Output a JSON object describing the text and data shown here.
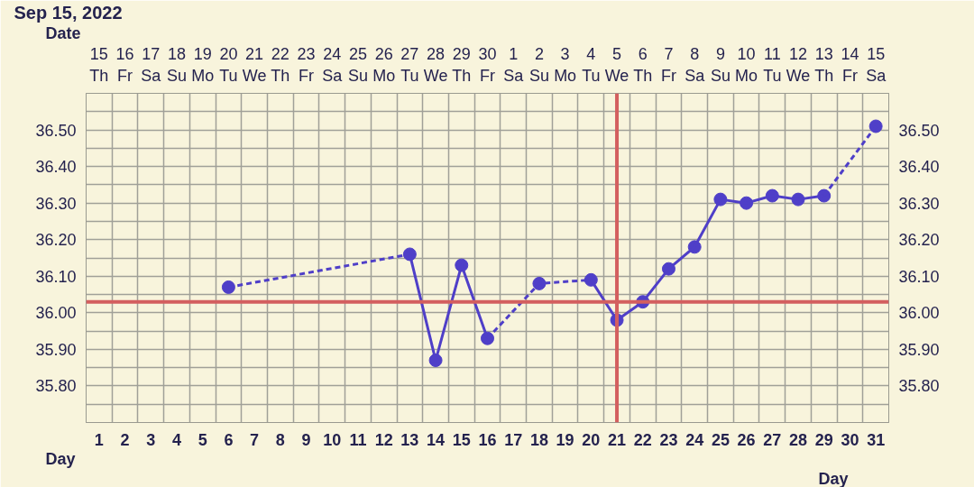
{
  "chart_data": {
    "type": "line",
    "title": "Sep 15, 2022",
    "xlabel": "Date",
    "x2label": "Day",
    "categories": [
      "15\nTh",
      "16\nFr",
      "17\nSa",
      "18\nSu",
      "19\nMo",
      "20\nTu",
      "21\nWe",
      "22\nTh",
      "23\nFr",
      "24\nSa",
      "25\nSu",
      "26\nMo",
      "27\nTu",
      "28\nWe",
      "29\nTh",
      "30\nFr",
      "1\nSa",
      "2\nSu",
      "3\nMo",
      "4\nTu",
      "5\nWe",
      "6\nTh",
      "7\nFr",
      "8\nSa",
      "9\nSu",
      "10\nMo",
      "11\nTu",
      "12\nWe",
      "13\nTh",
      "14\nFr",
      "15\nSa"
    ],
    "x2lim": [
      0.5,
      31.5
    ],
    "x2ticks": [
      1,
      2,
      3,
      4,
      5,
      6,
      7,
      8,
      9,
      10,
      11,
      12,
      13,
      14,
      15,
      16,
      17,
      18,
      19,
      20,
      21,
      22,
      23,
      24,
      25,
      26,
      27,
      28,
      29,
      30,
      31
    ],
    "ylim": [
      35.7,
      36.6
    ],
    "yticks": [
      {
        "value": 35.75,
        "label": null
      },
      {
        "value": 35.8,
        "label": "35.80"
      },
      {
        "value": 35.85,
        "label": null
      },
      {
        "value": 35.9,
        "label": "35.90"
      },
      {
        "value": 35.95,
        "label": null
      },
      {
        "value": 36.0,
        "label": "36.00"
      },
      {
        "value": 36.05,
        "label": null
      },
      {
        "value": 36.1,
        "label": "36.10"
      },
      {
        "value": 36.15,
        "label": null
      },
      {
        "value": 36.2,
        "label": "36.20"
      },
      {
        "value": 36.25,
        "label": null
      },
      {
        "value": 36.3,
        "label": "36.30"
      },
      {
        "value": 36.35,
        "label": null
      },
      {
        "value": 36.4,
        "label": "36.40"
      },
      {
        "value": 36.45,
        "label": null
      },
      {
        "value": 36.5,
        "label": "36.50"
      },
      {
        "value": 36.55,
        "label": null
      }
    ],
    "y2lim": [
      35.7,
      36.6
    ],
    "y2ticks": [
      {
        "value": 35.8,
        "label": "35.80"
      },
      {
        "value": 35.9,
        "label": "35.90"
      },
      {
        "value": 36.0,
        "label": "36.00"
      },
      {
        "value": 36.1,
        "label": "36.10"
      },
      {
        "value": 36.2,
        "label": "36.20"
      },
      {
        "value": 36.3,
        "label": "36.30"
      },
      {
        "value": 36.4,
        "label": "36.40"
      },
      {
        "value": 36.5,
        "label": "36.50"
      }
    ],
    "grid": true,
    "series": [
      {
        "type": "scatter",
        "marker": "circle",
        "color": "#4f3fc8",
        "values": [
          null,
          null,
          null,
          null,
          null,
          36.07,
          null,
          null,
          null,
          null,
          null,
          null,
          36.16,
          35.87,
          36.13,
          35.93,
          null,
          36.08,
          null,
          36.09,
          35.98,
          36.03,
          36.12,
          36.18,
          36.31,
          36.3,
          36.32,
          36.31,
          36.32,
          null,
          36.51
        ]
      },
      {
        "line_style": "dashed",
        "color": "#4f3fc8",
        "values": [
          null,
          null,
          null,
          null,
          null,
          36.07,
          null,
          null,
          null,
          null,
          null,
          null,
          36.16,
          null,
          null,
          null,
          null,
          null,
          null,
          null,
          null,
          null,
          null,
          null,
          null,
          null,
          null,
          null,
          null,
          null,
          null
        ]
      },
      {
        "line_style": "solid",
        "color": "#4f3fc8",
        "values": [
          null,
          null,
          null,
          null,
          null,
          null,
          null,
          null,
          null,
          null,
          null,
          null,
          36.16,
          35.87,
          36.13,
          35.93,
          null,
          null,
          null,
          null,
          null,
          null,
          null,
          null,
          null,
          null,
          null,
          null,
          null,
          null,
          null
        ]
      },
      {
        "line_style": "dashed",
        "color": "#4f3fc8",
        "values": [
          null,
          null,
          null,
          null,
          null,
          null,
          null,
          null,
          null,
          null,
          null,
          null,
          null,
          null,
          null,
          35.93,
          null,
          36.08,
          null,
          36.09,
          null,
          null,
          null,
          null,
          null,
          null,
          null,
          null,
          null,
          null,
          null
        ]
      },
      {
        "line_style": "solid",
        "color": "#4f3fc8",
        "values": [
          null,
          null,
          null,
          null,
          null,
          null,
          null,
          null,
          null,
          null,
          null,
          null,
          null,
          null,
          null,
          null,
          null,
          null,
          null,
          36.09,
          35.98,
          36.03,
          36.12,
          36.18,
          36.31,
          36.3,
          36.32,
          36.31,
          36.32,
          null,
          null
        ]
      },
      {
        "line_style": "dashed",
        "color": "#4f3fc8",
        "values": [
          null,
          null,
          null,
          null,
          null,
          null,
          null,
          null,
          null,
          null,
          null,
          null,
          null,
          null,
          null,
          null,
          null,
          null,
          null,
          null,
          null,
          null,
          null,
          null,
          null,
          null,
          null,
          null,
          36.32,
          null,
          36.51
        ]
      }
    ],
    "ref_lines": [
      {
        "axis": "y",
        "value": 36.03,
        "color": "#d35f5f"
      },
      {
        "axis": "x",
        "value": "5\nWe",
        "color": "#d35f5f"
      }
    ]
  }
}
